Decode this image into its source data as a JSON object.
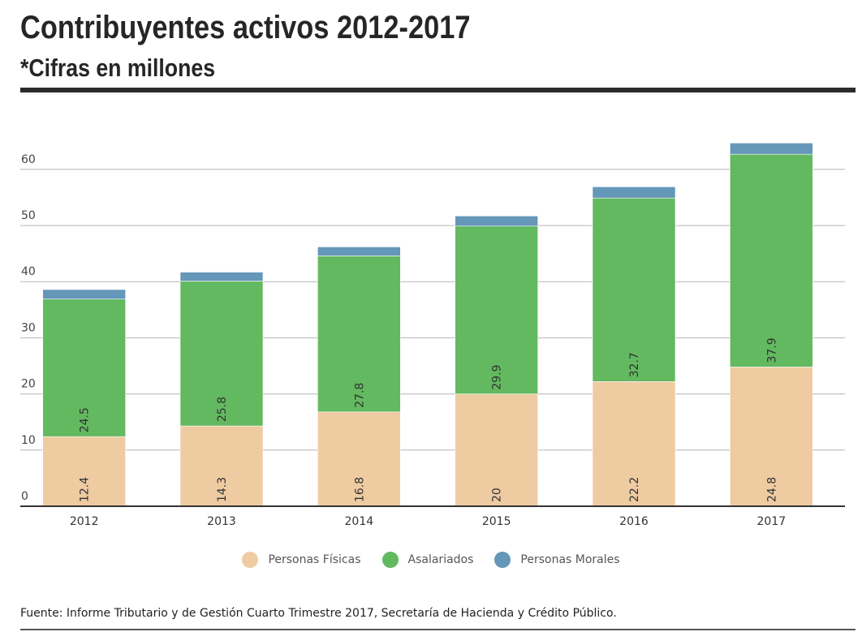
{
  "header": {
    "title": "Contribuyentes activos 2012-2017",
    "subtitle": "*Cifras en millones"
  },
  "source": "Fuente: Informe Tributario y de Gestión Cuarto Trimestre 2017, Secretaría de Hacienda y Crédito Público.",
  "chart_data": {
    "type": "bar",
    "stacked": true,
    "title": "Contribuyentes activos 2012-2017",
    "subtitle": "*Cifras en millones",
    "xlabel": "",
    "ylabel": "",
    "categories": [
      "2012",
      "2013",
      "2014",
      "2015",
      "2016",
      "2017"
    ],
    "yticks": [
      0,
      10,
      20,
      30,
      40,
      50,
      60
    ],
    "ylim": [
      0,
      68
    ],
    "grid": true,
    "legend_position": "bottom",
    "series": [
      {
        "name": "Personas Físicas",
        "color": "#efcba2",
        "values": [
          12.4,
          14.3,
          16.8,
          20,
          22.2,
          24.8
        ],
        "labels": [
          "12.4",
          "14.3",
          "16.8",
          "20",
          "22.2",
          "24.8"
        ]
      },
      {
        "name": "Asalariados",
        "color": "#63b960",
        "values": [
          24.5,
          25.8,
          27.8,
          29.9,
          32.7,
          37.9
        ],
        "labels": [
          "24.5",
          "25.8",
          "27.8",
          "29.9",
          "32.7",
          "37.9"
        ]
      },
      {
        "name": "Personas Morales",
        "color": "#6597b9",
        "values": [
          1.7,
          1.6,
          1.6,
          1.8,
          2.0,
          2.0
        ],
        "labels": null
      }
    ]
  }
}
